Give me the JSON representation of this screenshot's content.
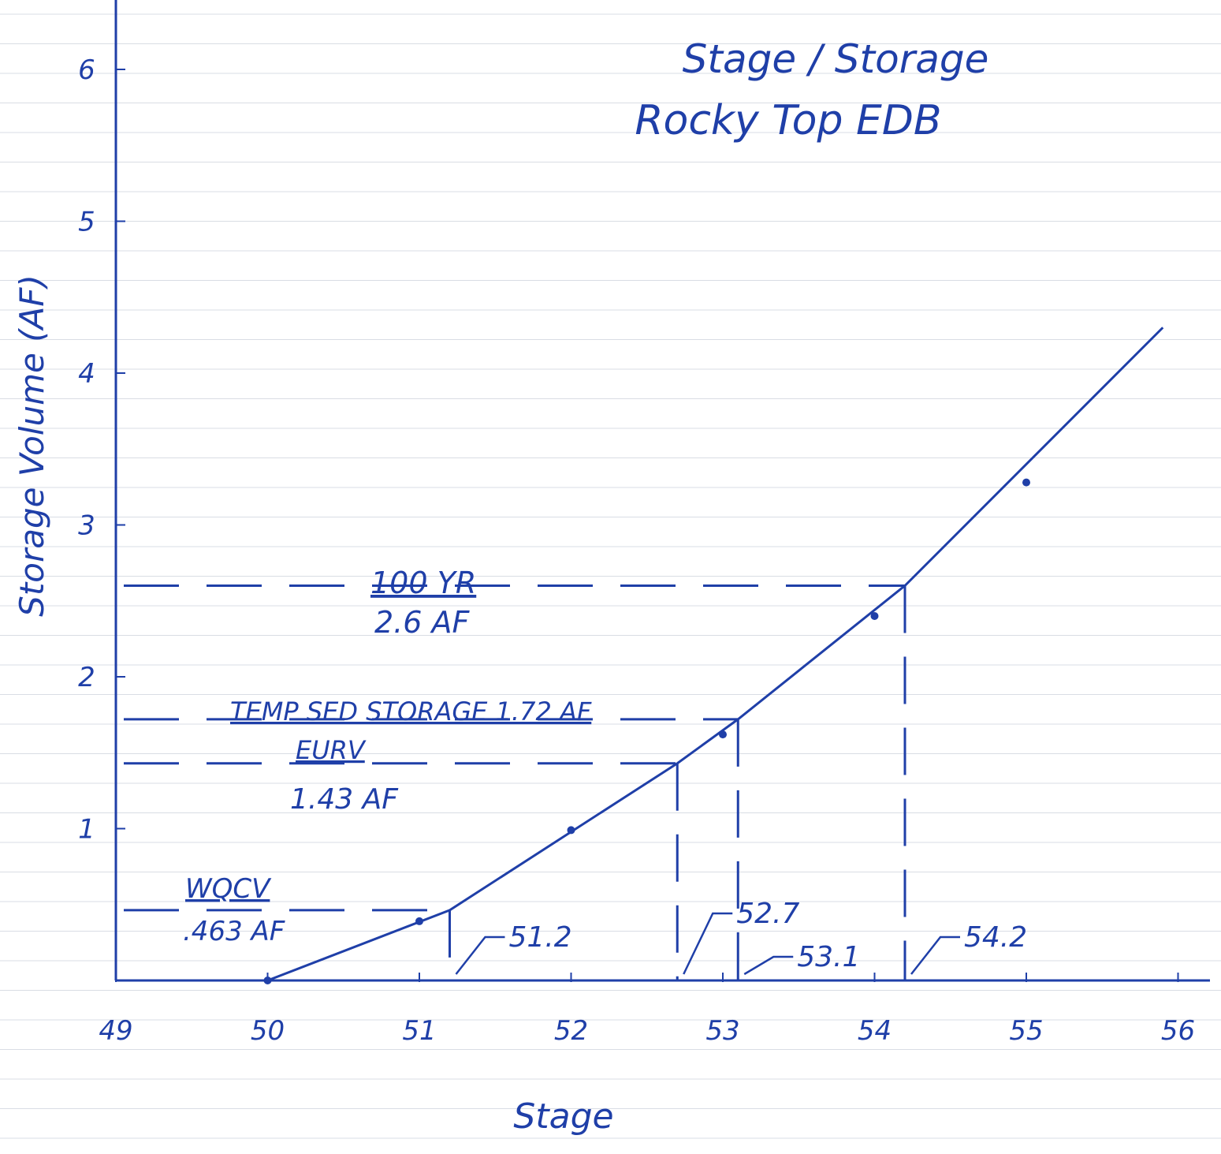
{
  "chart_data": {
    "type": "line",
    "title": [
      "Stage / Storage",
      "Rocky Top EDB"
    ],
    "xlabel": "Stage",
    "ylabel": "Storage Volume (AF)",
    "xlim": [
      49,
      56
    ],
    "ylim": [
      0,
      6.5
    ],
    "x_ticks": [
      "49",
      "50",
      "51",
      "52",
      "53",
      "54",
      "55",
      "56"
    ],
    "y_ticks": [
      "1",
      "2",
      "3",
      "4",
      "5",
      "6"
    ],
    "grid": false,
    "series": [
      {
        "points": [
          {
            "x": 50.0,
            "y": 0.0
          },
          {
            "x": 51.0,
            "y": 0.39
          },
          {
            "x": 52.0,
            "y": 0.99
          },
          {
            "x": 53.0,
            "y": 1.62
          },
          {
            "x": 54.0,
            "y": 2.4
          },
          {
            "x": 55.0,
            "y": 3.28
          }
        ],
        "line": [
          {
            "x": 50.0,
            "y": 0.0
          },
          {
            "x": 51.2,
            "y": 0.463
          },
          {
            "x": 52.7,
            "y": 1.43
          },
          {
            "x": 53.1,
            "y": 1.72
          },
          {
            "x": 54.2,
            "y": 2.6
          },
          {
            "x": 55.9,
            "y": 4.3
          }
        ]
      }
    ],
    "reference_levels": [
      {
        "label": "100 YR",
        "value_label": "2.6 AF",
        "storage": 2.6,
        "stage": 54.2,
        "stage_label": "54.2"
      },
      {
        "label": "TEMP SED STORAGE 1.72 AF",
        "storage": 1.72,
        "stage": 53.1,
        "stage_label": "53.1"
      },
      {
        "label": "EURV",
        "value_label": "1.43 AF",
        "storage": 1.43,
        "stage": 52.7,
        "stage_label": "52.7"
      },
      {
        "label": "WQCV",
        "value_label": ".463 AF",
        "storage": 0.463,
        "stage": 51.2,
        "stage_label": "51.2"
      }
    ]
  },
  "colors": {
    "ink": "#1f3fa8",
    "paper": "#ffffff",
    "rule": "#d9dde4"
  }
}
